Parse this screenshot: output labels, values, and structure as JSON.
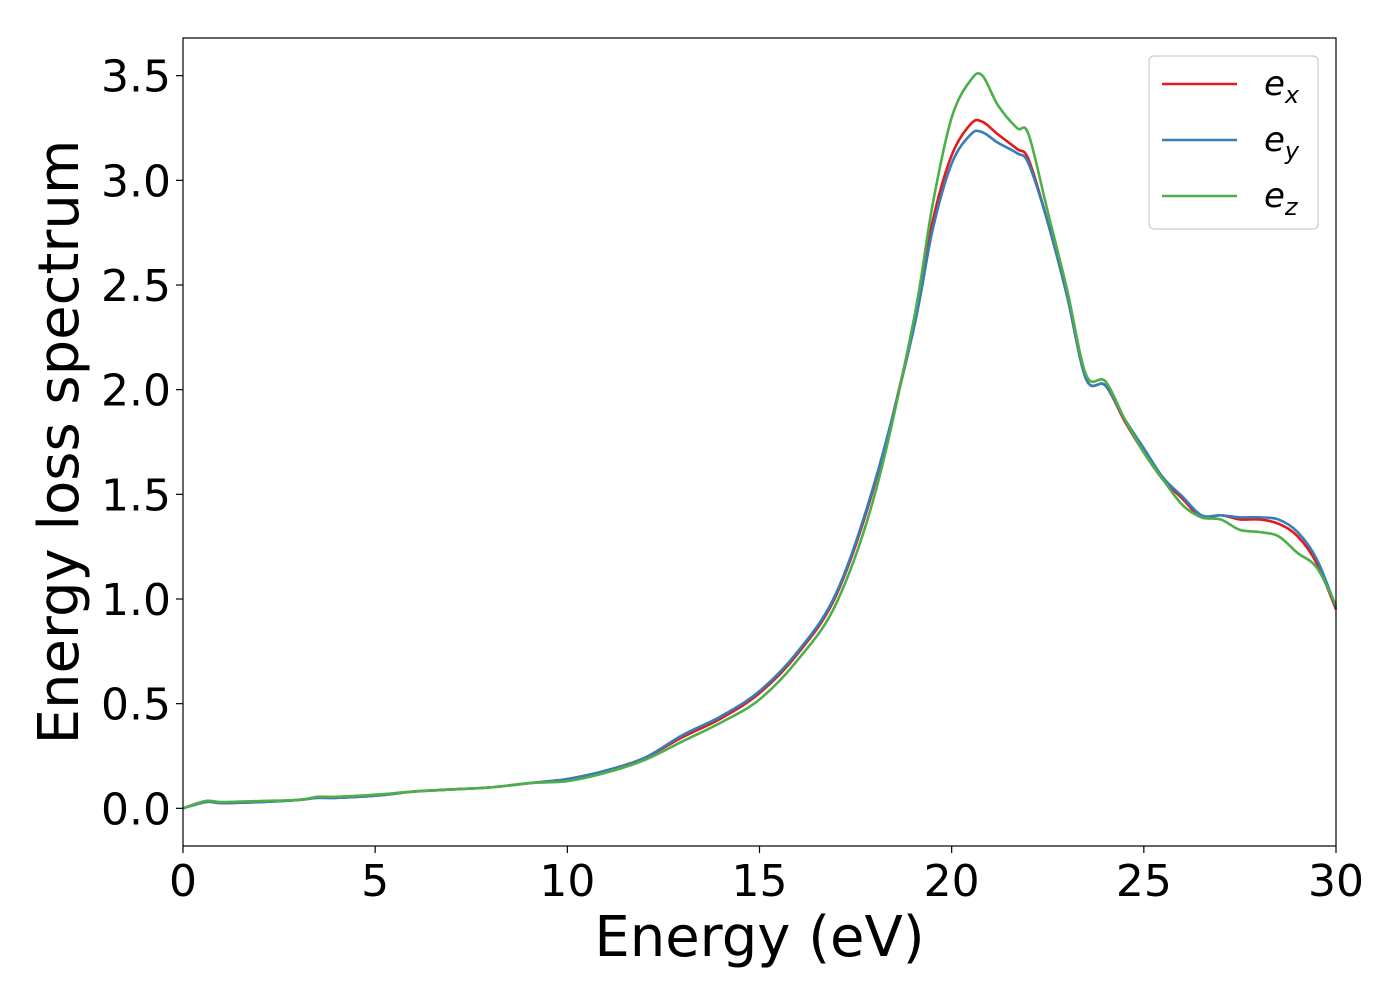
{
  "chart_data": {
    "type": "line",
    "title": "",
    "xlabel": "Energy (eV)",
    "ylabel": "Energy loss spectrum",
    "xlim": [
      0,
      30
    ],
    "ylim": [
      -0.18,
      3.68
    ],
    "xticks": [
      "0",
      "5",
      "10",
      "15",
      "20",
      "25",
      "30"
    ],
    "yticks": [
      "0.0",
      "0.5",
      "1.0",
      "1.5",
      "2.0",
      "2.5",
      "3.0",
      "3.5"
    ],
    "grid": false,
    "legend_position": "top-right",
    "series": [
      {
        "name": "e",
        "subscript": "x",
        "color": "#e41a1c",
        "x": [
          0,
          0.6,
          1,
          2,
          3,
          3.5,
          4,
          5,
          6,
          7,
          8,
          9,
          10,
          11,
          12,
          13,
          14,
          15,
          16,
          17,
          18,
          19,
          19.5,
          20,
          20.5,
          20.8,
          21.2,
          21.7,
          22,
          22.5,
          23,
          23.5,
          24,
          24.5,
          25,
          25.5,
          26,
          26.5,
          27,
          27.5,
          28,
          28.5,
          29,
          29.5,
          30
        ],
        "y": [
          0.0,
          0.035,
          0.025,
          0.03,
          0.04,
          0.05,
          0.05,
          0.06,
          0.08,
          0.09,
          0.1,
          0.12,
          0.14,
          0.18,
          0.24,
          0.34,
          0.43,
          0.55,
          0.74,
          1.02,
          1.55,
          2.3,
          2.8,
          3.12,
          3.27,
          3.28,
          3.22,
          3.15,
          3.1,
          2.8,
          2.45,
          2.05,
          2.02,
          1.85,
          1.7,
          1.57,
          1.48,
          1.39,
          1.4,
          1.38,
          1.38,
          1.36,
          1.3,
          1.17,
          0.95
        ]
      },
      {
        "name": "e",
        "subscript": "y",
        "color": "#377eb8",
        "x": [
          0,
          0.6,
          1,
          2,
          3,
          3.5,
          4,
          5,
          6,
          7,
          8,
          9,
          10,
          11,
          12,
          13,
          14,
          15,
          16,
          17,
          18,
          19,
          19.5,
          20,
          20.5,
          20.8,
          21.2,
          21.7,
          22,
          22.5,
          23,
          23.5,
          24,
          24.5,
          25,
          25.5,
          26,
          26.5,
          27,
          27.5,
          28,
          28.5,
          29,
          29.5,
          30
        ],
        "y": [
          0.0,
          0.03,
          0.025,
          0.03,
          0.04,
          0.05,
          0.05,
          0.06,
          0.08,
          0.09,
          0.1,
          0.12,
          0.14,
          0.18,
          0.24,
          0.35,
          0.44,
          0.56,
          0.75,
          1.03,
          1.56,
          2.28,
          2.76,
          3.08,
          3.22,
          3.23,
          3.18,
          3.13,
          3.08,
          2.8,
          2.45,
          2.05,
          2.02,
          1.86,
          1.72,
          1.58,
          1.49,
          1.4,
          1.4,
          1.39,
          1.39,
          1.38,
          1.32,
          1.19,
          0.96
        ]
      },
      {
        "name": "e",
        "subscript": "z",
        "color": "#4daf4a",
        "x": [
          0,
          0.6,
          1,
          2,
          3,
          3.5,
          4,
          5,
          6,
          7,
          8,
          9,
          10,
          11,
          12,
          13,
          14,
          15,
          16,
          17,
          18,
          19,
          19.5,
          20,
          20.5,
          20.8,
          21.2,
          21.7,
          22,
          22.5,
          23,
          23.5,
          24,
          24.5,
          25,
          25.5,
          26,
          26.5,
          27,
          27.5,
          28,
          28.5,
          29,
          29.5,
          30
        ],
        "y": [
          0.0,
          0.035,
          0.03,
          0.035,
          0.04,
          0.055,
          0.055,
          0.065,
          0.08,
          0.09,
          0.1,
          0.12,
          0.13,
          0.17,
          0.23,
          0.32,
          0.41,
          0.52,
          0.71,
          0.98,
          1.5,
          2.32,
          2.88,
          3.3,
          3.48,
          3.5,
          3.36,
          3.25,
          3.22,
          2.85,
          2.48,
          2.07,
          2.04,
          1.86,
          1.7,
          1.57,
          1.45,
          1.39,
          1.38,
          1.33,
          1.32,
          1.3,
          1.22,
          1.15,
          0.97
        ]
      }
    ]
  }
}
